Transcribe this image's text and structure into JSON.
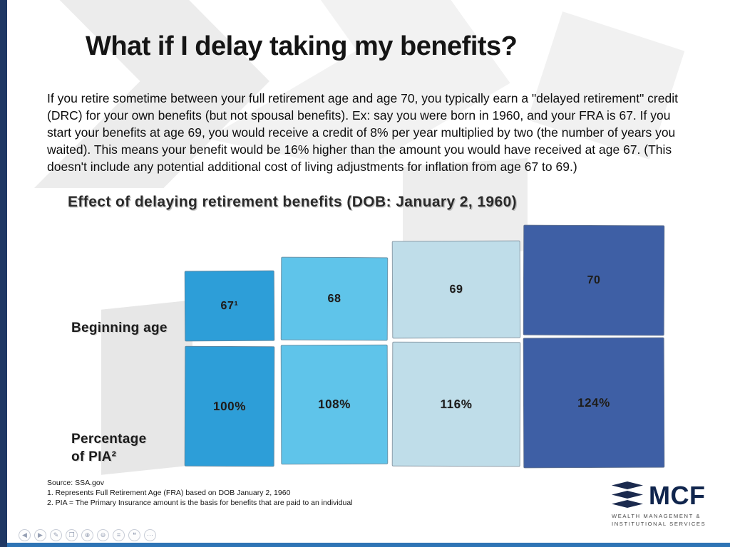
{
  "slide": {
    "title": "What if I delay taking my benefits?",
    "body": "If you retire sometime between your full retirement age and age 70, you typically earn a \"delayed retirement\" credit (DRC) for your own benefits (but not spousal benefits). Ex: say you were born in 1960, and your FRA is 67. If you start your benefits at age 69, you would receive a credit of 8% per year multiplied by two (the number of years you waited). This means your benefit would be 16% higher than the amount you would have received at age 67. (This doesn't include any potential additional cost of living adjustments for inflation from age 67 to 69.)"
  },
  "chart": {
    "title": "Effect of delaying retirement benefits (DOB: January 2, 1960)",
    "row_label_top": "Beginning age",
    "row_label_bottom_line1": "Percentage",
    "row_label_bottom_line2": "of PIA²",
    "columns": [
      {
        "age": "67¹",
        "pct": "100%",
        "color": "#2D9ED8"
      },
      {
        "age": "68",
        "pct": "108%",
        "color": "#5FC4EA"
      },
      {
        "age": "69",
        "pct": "116%",
        "color": "#BFDDE9"
      },
      {
        "age": "70",
        "pct": "124%",
        "color": "#3E5FA5"
      }
    ]
  },
  "chart_data": {
    "type": "table",
    "title": "Effect of delaying retirement benefits (DOB: January 2, 1960)",
    "categories": [
      "67",
      "68",
      "69",
      "70"
    ],
    "rows": [
      {
        "label": "Beginning age",
        "values": [
          "67¹",
          "68",
          "69",
          "70"
        ]
      },
      {
        "label": "Percentage of PIA²",
        "values": [
          "100%",
          "108%",
          "116%",
          "124%"
        ]
      }
    ],
    "values_numeric": [
      100,
      108,
      116,
      124
    ],
    "colors": [
      "#2D9ED8",
      "#5FC4EA",
      "#BFDDE9",
      "#3E5FA5"
    ]
  },
  "footnotes": [
    "Source: SSA.gov",
    "1. Represents Full Retirement Age (FRA) based on DOB January 2, 1960",
    "2. PIA = The Primary Insurance amount is the basis for benefits that are paid to an individual"
  ],
  "logo": {
    "name": "MCF",
    "tagline_line1": "WEALTH MANAGEMENT &",
    "tagline_line2": "INSTITUTIONAL SERVICES"
  },
  "toolbar": {
    "icons": [
      {
        "name": "previous",
        "glyph": "◀"
      },
      {
        "name": "next",
        "glyph": "▶"
      },
      {
        "name": "pen",
        "glyph": "✎"
      },
      {
        "name": "copy",
        "glyph": "❐"
      },
      {
        "name": "zoom-in",
        "glyph": "⊕"
      },
      {
        "name": "zoom-out",
        "glyph": "⊖"
      },
      {
        "name": "list",
        "glyph": "≡"
      },
      {
        "name": "comment",
        "glyph": "❝"
      },
      {
        "name": "more",
        "glyph": "⋯"
      }
    ]
  },
  "theme": {
    "left_strip": "#1f3864",
    "bottom_bar": "#2e74b5"
  }
}
